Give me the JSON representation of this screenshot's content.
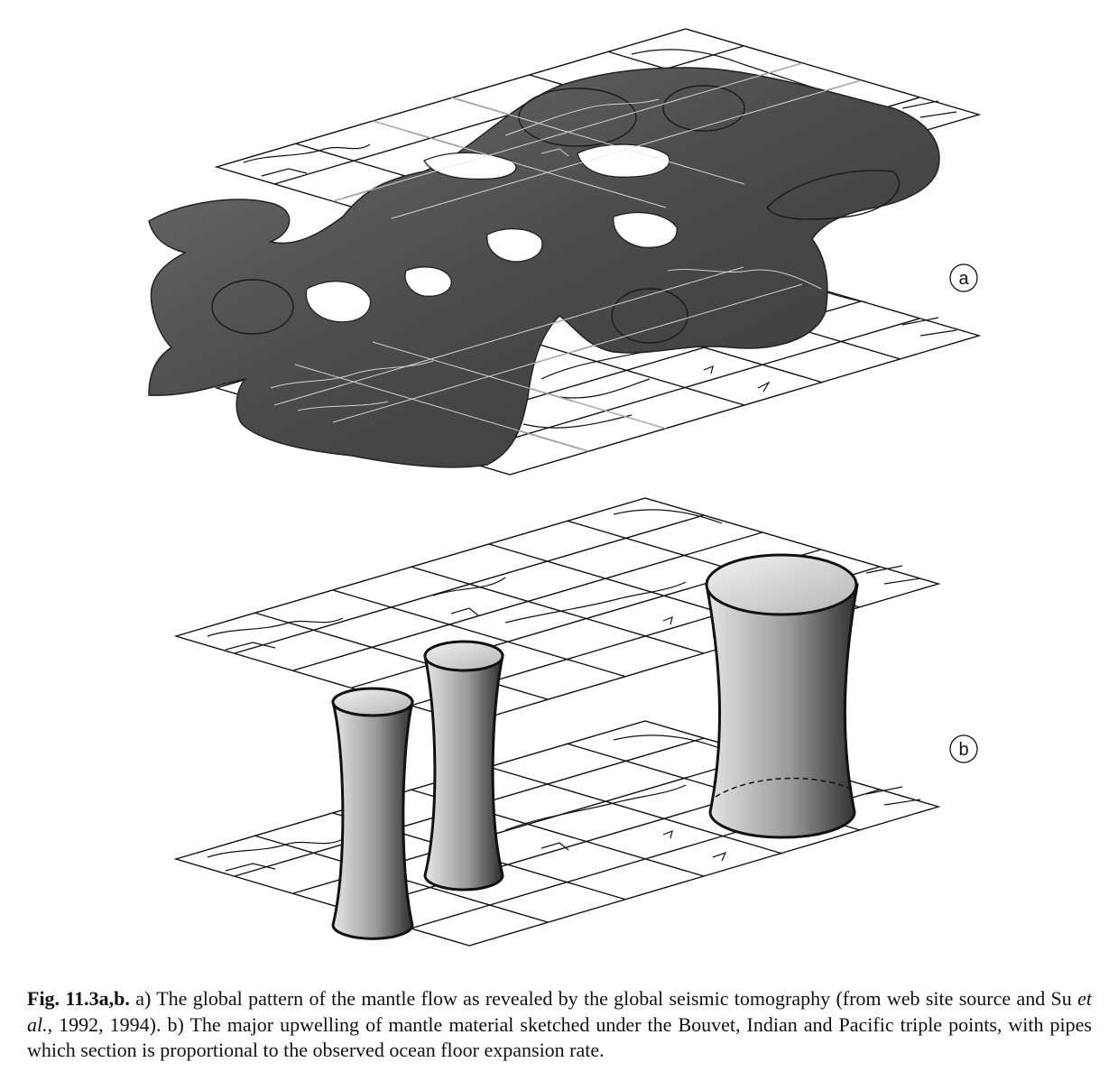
{
  "figure": {
    "panel_a_label": "a",
    "panel_b_label": "b"
  },
  "caption": {
    "label": "Fig. 11.3a,b.",
    "text_1": " a) The global pattern of the mantle flow as revealed by the global seismic tomography (from web site source and Su ",
    "text_italic": "et al.",
    "text_2": ", 1992, 1994). b) The major upwelling of mantle material sketched under the Bouvet, Indian and Pacific triple points, with pipes which section is proportional to the observed ocean floor expansion rate."
  }
}
